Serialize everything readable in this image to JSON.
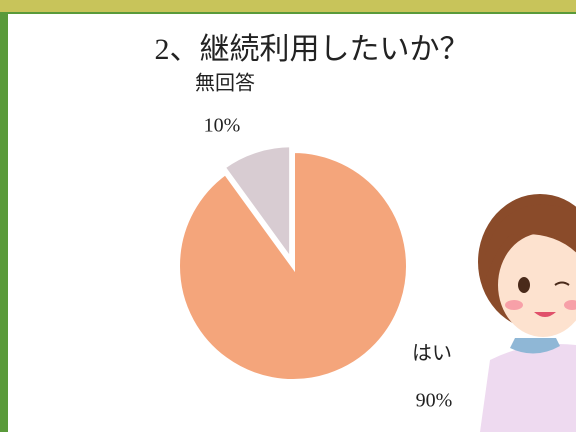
{
  "chart_data": {
    "type": "pie",
    "title": "2、継続利用したいか？",
    "categories": [
      "はい",
      "無回答"
    ],
    "values": [
      90,
      10
    ],
    "value_labels": [
      "90%",
      "10%"
    ],
    "colors": [
      "#f4a57b",
      "#d8ccd2"
    ]
  }
}
